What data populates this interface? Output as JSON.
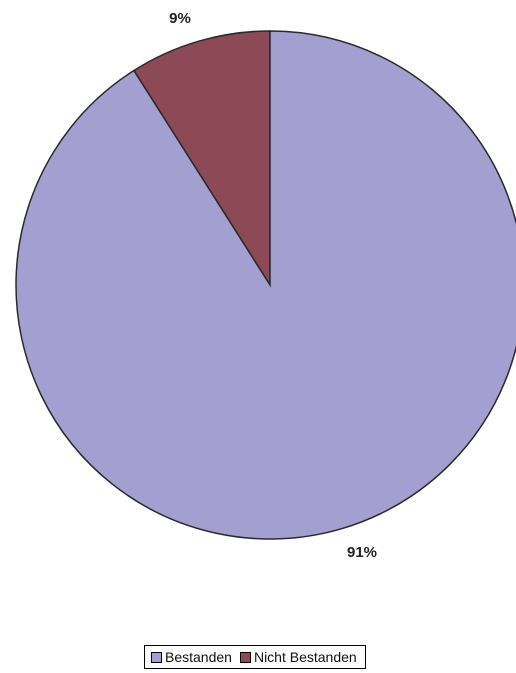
{
  "chart_data": {
    "type": "pie",
    "categories": [
      "Bestanden",
      "Nicht Bestanden"
    ],
    "values": [
      91,
      9
    ],
    "labels": [
      "91%",
      "9%"
    ],
    "colors": [
      "#a39fd0",
      "#8c4a57"
    ],
    "start": "12 o'clock",
    "direction": "counter-clockwise",
    "legend_position": "bottom-center"
  }
}
